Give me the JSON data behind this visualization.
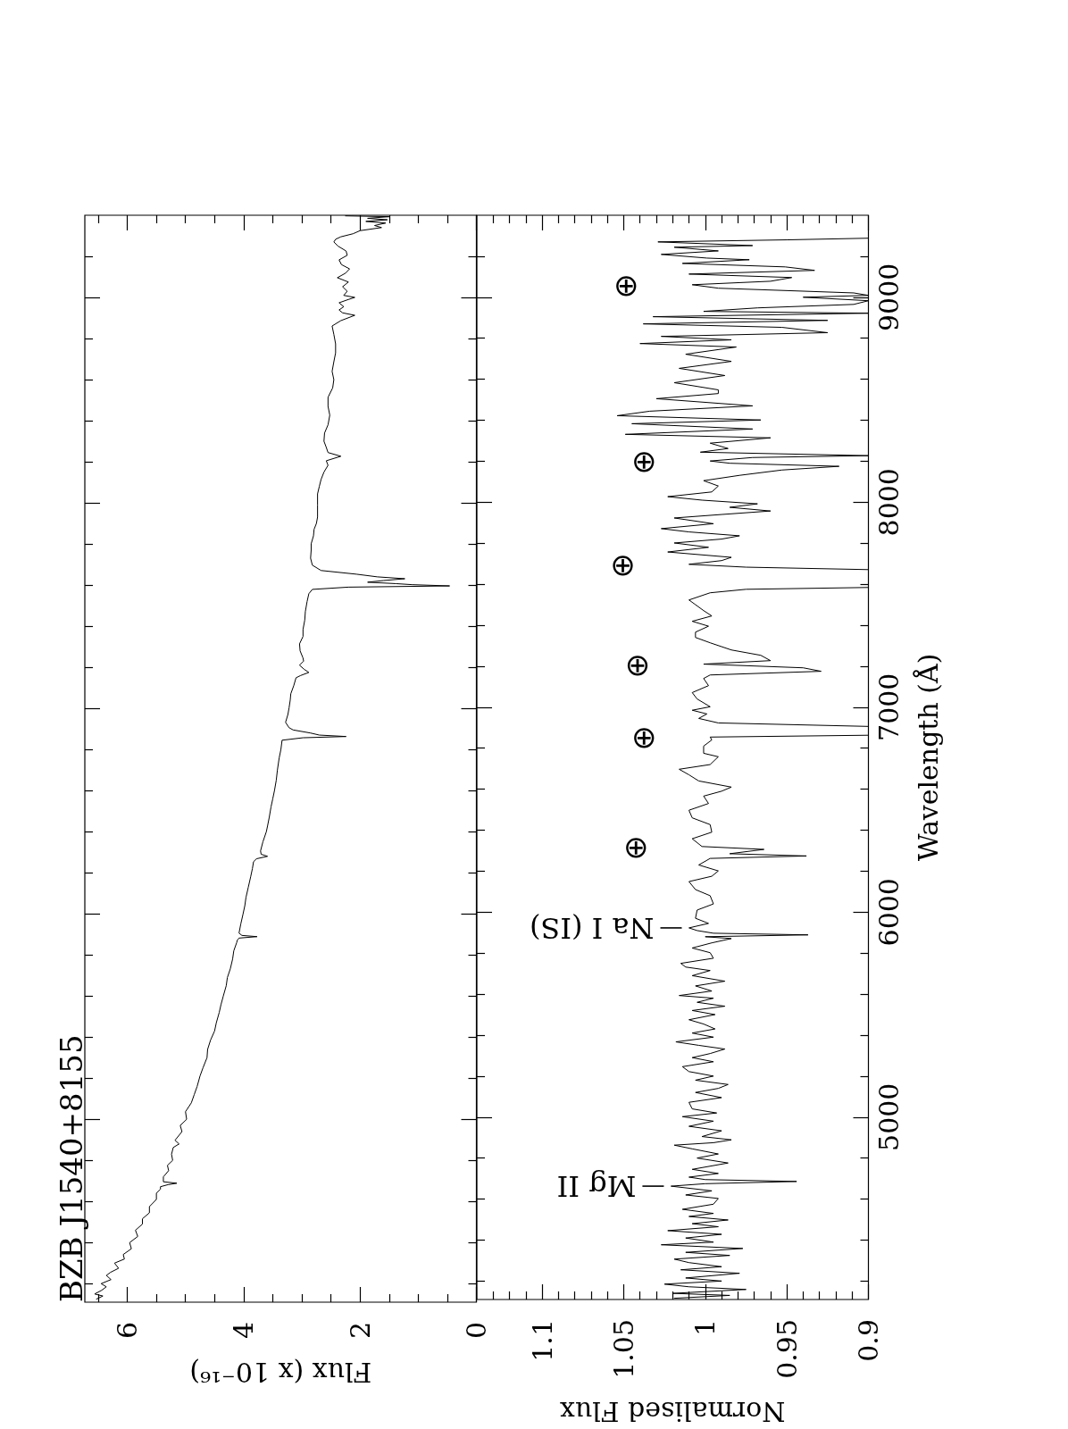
{
  "chart_data": [
    {
      "type": "line",
      "title": "BZB J1540+8155",
      "xlabel": "Flux (x 10⁻¹⁶)",
      "color": "#000000",
      "marker": "none",
      "tick_labels": "x",
      "xlim": [
        6.73,
        0
      ],
      "xticks": [
        {
          "value": 6.5,
          "label": null
        },
        6,
        {
          "value": 5.5,
          "label": null
        },
        {
          "value": 5,
          "label": null
        },
        {
          "value": 4.5,
          "label": null
        },
        4,
        {
          "value": 3.5,
          "label": null
        },
        {
          "value": 3,
          "label": null
        },
        {
          "value": 2.5,
          "label": null
        },
        2,
        {
          "value": 1.5,
          "label": null
        },
        {
          "value": 1,
          "label": null
        },
        {
          "value": 0.5,
          "label": null
        },
        0
      ],
      "ylim": [
        4110,
        9400
      ],
      "yticks": [
        {
          "value": 4200,
          "label": null
        },
        {
          "value": 4400,
          "label": null
        },
        {
          "value": 4600,
          "label": null
        },
        {
          "value": 4800,
          "label": null
        },
        5000,
        {
          "value": 5200,
          "label": null
        },
        {
          "value": 5400,
          "label": null
        },
        {
          "value": 5600,
          "label": null
        },
        {
          "value": 5800,
          "label": null
        },
        6000,
        {
          "value": 6200,
          "label": null
        },
        {
          "value": 6400,
          "label": null
        },
        {
          "value": 6600,
          "label": null
        },
        {
          "value": 6800,
          "label": null
        },
        7000,
        {
          "value": 7200,
          "label": null
        },
        {
          "value": 7400,
          "label": null
        },
        {
          "value": 7600,
          "label": null
        },
        {
          "value": 7800,
          "label": null
        },
        8000,
        {
          "value": 8200,
          "label": null
        },
        {
          "value": 8400,
          "label": null
        },
        {
          "value": 8600,
          "label": null
        },
        {
          "value": 8800,
          "label": null
        },
        9000,
        {
          "value": 9200,
          "label": null
        }
      ],
      "x": [
        6.53,
        6.42,
        6.56,
        6.44,
        6.36,
        6.45,
        6.28,
        6.36,
        6.29,
        6.15,
        6.22,
        6.05,
        6.07,
        5.93,
        5.96,
        5.82,
        5.86,
        5.74,
        5.74,
        5.62,
        5.62,
        5.5,
        5.5,
        5.43,
        5.43,
        5.3,
        5.15,
        5.38,
        5.38,
        5.29,
        5.31,
        5.22,
        5.24,
        5.21,
        5.11,
        5.18,
        5.06,
        5.09,
        4.98,
        5.0,
        4.9,
        4.85,
        4.8,
        4.75,
        4.7,
        4.63,
        4.62,
        4.57,
        4.5,
        4.47,
        4.42,
        4.39,
        4.35,
        4.3,
        4.28,
        4.23,
        4.19,
        4.17,
        4.12,
        4.11,
        4.08,
        3.77,
        4.03,
        4.08,
        4.05,
        4.01,
        3.98,
        3.96,
        3.92,
        3.88,
        3.85,
        3.83,
        3.78,
        3.59,
        3.7,
        3.71,
        3.67,
        3.61,
        3.59,
        3.56,
        3.53,
        3.5,
        3.47,
        3.44,
        3.42,
        3.39,
        3.36,
        3.34,
        2.98,
        2.24,
        2.7,
        2.85,
        3.15,
        3.22,
        3.28,
        3.24,
        3.22,
        3.2,
        3.19,
        3.14,
        3.1,
        3.02,
        2.88,
        2.96,
        3.04,
        2.97,
        2.98,
        3.03,
        3.04,
        2.98,
        2.98,
        2.95,
        2.94,
        2.91,
        2.88,
        2.82,
        2.2,
        0.46,
        1.1,
        1.38,
        1.87,
        1.6,
        1.23,
        1.7,
        2.06,
        2.67,
        2.82,
        2.85,
        2.84,
        2.84,
        2.8,
        2.79,
        2.75,
        2.73,
        2.73,
        2.73,
        2.7,
        2.67,
        2.62,
        2.55,
        2.58,
        2.33,
        2.55,
        2.58,
        2.62,
        2.61,
        2.55,
        2.52,
        2.55,
        2.55,
        2.47,
        2.45,
        2.48,
        2.45,
        2.42,
        2.42,
        2.45,
        2.48,
        2.33,
        2.09,
        2.3,
        2.36,
        2.28,
        2.36,
        2.2,
        2.09,
        2.28,
        2.22,
        2.3,
        2.2,
        2.39,
        2.25,
        2.18,
        2.32,
        2.36,
        2.22,
        2.24,
        2.38,
        2.45,
        2.42,
        2.33,
        2.12,
        2.0,
        1.63,
        1.75,
        1.56,
        1.9,
        1.53,
        1.87,
        1.5,
        2.25
      ],
      "values": [
        4125,
        4140,
        4150,
        4168,
        4185,
        4200,
        4220,
        4240,
        4255,
        4275,
        4300,
        4320,
        4342,
        4370,
        4400,
        4430,
        4460,
        4490,
        4516,
        4545,
        4575,
        4610,
        4640,
        4660,
        4672,
        4682,
        4689,
        4696,
        4720,
        4750,
        4776,
        4800,
        4830,
        4863,
        4880,
        4898,
        4940,
        4970,
        5000,
        5037,
        5080,
        5120,
        5160,
        5211,
        5250,
        5300,
        5340,
        5385,
        5430,
        5470,
        5520,
        5558,
        5600,
        5650,
        5690,
        5732,
        5780,
        5820,
        5860,
        5871,
        5882,
        5889,
        5895,
        5906,
        5950,
        6000,
        6040,
        6080,
        6130,
        6180,
        6220,
        6254,
        6268,
        6280,
        6290,
        6306,
        6350,
        6400,
        6427,
        6470,
        6520,
        6560,
        6601,
        6650,
        6700,
        6758,
        6800,
        6845,
        6857,
        6863,
        6870,
        6880,
        6895,
        6906,
        6932,
        6970,
        7002,
        7040,
        7071,
        7110,
        7149,
        7160,
        7175,
        7190,
        7210,
        7230,
        7245,
        7280,
        7314,
        7350,
        7384,
        7430,
        7471,
        7520,
        7558,
        7579,
        7590,
        7596,
        7602,
        7607,
        7614,
        7622,
        7631,
        7640,
        7653,
        7671,
        7697,
        7731,
        7770,
        7801,
        7840,
        7871,
        7900,
        7931,
        7990,
        8044,
        8080,
        8114,
        8150,
        8183,
        8205,
        8227,
        8245,
        8270,
        8300,
        8340,
        8380,
        8427,
        8470,
        8514,
        8560,
        8600,
        8640,
        8687,
        8730,
        8774,
        8820,
        8861,
        8887,
        8913,
        8925,
        8939,
        8955,
        8974,
        8990,
        9000,
        9010,
        9030,
        9052,
        9075,
        9096,
        9118,
        9139,
        9160,
        9183,
        9205,
        9226,
        9250,
        9270,
        9283,
        9295,
        9310,
        9325,
        9340,
        9350,
        9362,
        9370,
        9378,
        9385,
        9393,
        9397
      ]
    },
    {
      "type": "line",
      "xlabel": "Normalised Flux",
      "ylabel": "Wavelength (Å)",
      "color": "#000000",
      "marker": "none",
      "xlim": [
        1.14,
        0.9
      ],
      "xticks": [
        {
          "value": 1.13,
          "label": null
        },
        {
          "value": 1.12,
          "label": null
        },
        {
          "value": 1.11,
          "label": null
        },
        1.1,
        {
          "value": 1.09,
          "label": null
        },
        {
          "value": 1.08,
          "label": null
        },
        {
          "value": 1.07,
          "label": null
        },
        {
          "value": 1.06,
          "label": null
        },
        1.05,
        {
          "value": 1.04,
          "label": null
        },
        {
          "value": 1.03,
          "label": null
        },
        {
          "value": 1.02,
          "label": null
        },
        {
          "value": 1.01,
          "label": null
        },
        1,
        {
          "value": 0.99,
          "label": null
        },
        {
          "value": 0.98,
          "label": null
        },
        {
          "value": 0.97,
          "label": null
        },
        {
          "value": 0.96,
          "label": null
        },
        0.95,
        {
          "value": 0.94,
          "label": null
        },
        {
          "value": 0.93,
          "label": null
        },
        {
          "value": 0.92,
          "label": null
        },
        {
          "value": 0.91,
          "label": null
        },
        0.9
      ],
      "ylim": [
        4110,
        9400
      ],
      "yticks": [
        {
          "value": 4200,
          "label": null
        },
        {
          "value": 4400,
          "label": null
        },
        {
          "value": 4600,
          "label": null
        },
        {
          "value": 4800,
          "label": null
        },
        5000,
        {
          "value": 5200,
          "label": null
        },
        {
          "value": 5400,
          "label": null
        },
        {
          "value": 5600,
          "label": null
        },
        {
          "value": 5800,
          "label": null
        },
        6000,
        {
          "value": 6200,
          "label": null
        },
        {
          "value": 6400,
          "label": null
        },
        {
          "value": 6600,
          "label": null
        },
        {
          "value": 6800,
          "label": null
        },
        7000,
        {
          "value": 7200,
          "label": null
        },
        {
          "value": 7400,
          "label": null
        },
        {
          "value": 7600,
          "label": null
        },
        {
          "value": 7800,
          "label": null
        },
        8000,
        {
          "value": 8200,
          "label": null
        },
        {
          "value": 8400,
          "label": null
        },
        {
          "value": 8600,
          "label": null
        },
        {
          "value": 8800,
          "label": null
        },
        9000,
        {
          "value": 9200,
          "label": null
        }
      ],
      "annotations": [
        {
          "text": "Mg II",
          "x": 1.021,
          "y": 4663
        },
        {
          "text": "Na I (IS)",
          "x": 1.01,
          "y": 5923
        },
        {
          "text": "⊕",
          "x": 1.002,
          "y": 6320
        },
        {
          "text": "⊕",
          "x": 0.997,
          "y": 6854
        },
        {
          "text": "⊕",
          "x": 1.001,
          "y": 7210
        },
        {
          "text": "⊕",
          "x": 1.01,
          "y": 7697
        },
        {
          "text": "⊕",
          "x": 0.997,
          "y": 8201
        },
        {
          "text": "⊕",
          "x": 1.008,
          "y": 9061
        }
      ],
      "x": [
        1.019,
        0.985,
        1.02,
        0.975,
        1.01,
        1.025,
        0.99,
        1.012,
        0.979,
        1.015,
        0.99,
        1.01,
        1.019,
        0.985,
        1.012,
        0.977,
        1.027,
        0.995,
        1.012,
        0.99,
        1.023,
        0.992,
        1.008,
        0.986,
        1.01,
        0.995,
        1.014,
        0.995,
        0.992,
        1.012,
        0.996,
        1.021,
        1.0,
        0.944,
        1.0,
        1.01,
        0.992,
        1.008,
        0.986,
        1.005,
        0.992,
        1.008,
        1.019,
        0.995,
        0.984,
        1.002,
        0.99,
        1.01,
        0.995,
        1.014,
        0.993,
        1.008,
        1.01,
        0.99,
        1.006,
        0.992,
        0.986,
        1.006,
        0.995,
        1.01,
        1.014,
        0.995,
        1.008,
        0.997,
        0.988,
        1.004,
        1.018,
        0.995,
        1.008,
        0.994,
        1.001,
        1.01,
        0.994,
        1.008,
        0.988,
        1.005,
        0.995,
        1.016,
        0.996,
        1.006,
        0.988,
        1.008,
        0.997,
        1.012,
        1.015,
        0.995,
        0.997,
        1.008,
        0.996,
        0.984,
        1.0,
        0.937,
        0.995,
        1.005,
        1.01,
        0.998,
        1.006,
        1.005,
        0.995,
        0.997,
        1.006,
        1.01,
        0.996,
        0.992,
        1.004,
        0.997,
        0.938,
        0.985,
        0.964,
        1.002,
        1.008,
        0.996,
        0.997,
        1.008,
        1.01,
        0.998,
        1.001,
        0.99,
        0.984,
        1.004,
        1.01,
        1.016,
        0.997,
        0.992,
        1.001,
        1.001,
        0.996,
        0.997,
        0.9,
        0.9,
        0.992,
        1.004,
        0.999,
        1.008,
        0.997,
        1.005,
        1.008,
        0.998,
        1.001,
        0.997,
        0.929,
        0.94,
        1.001,
        0.96,
        0.966,
        0.984,
        0.997,
        1.006,
        1.006,
        0.998,
        1.008,
        0.996,
        1.001,
        1.006,
        1.01,
        0.997,
        0.975,
        0.9,
        0.9,
        0.975,
        1.01,
        0.99,
        0.984,
        1.023,
        0.998,
        1.019,
        0.99,
        0.979,
        1.01,
        1.027,
        0.995,
        1.019,
        0.99,
        0.96,
        0.985,
        0.968,
        1.002,
        1.023,
        0.996,
        0.992,
        1.001,
        0.979,
        0.953,
        0.918,
        0.985,
        0.997,
        0.971,
        0.9,
        1.003,
        0.986,
        0.997,
        0.96,
        1.049,
        0.971,
        1.045,
        0.966,
        1.054,
        1.034,
        0.971,
        1.03,
        0.992,
        0.992,
        1.019,
        0.988,
        1.016,
        0.984,
        1.012,
        0.981,
        1.04,
        0.984,
        1.027,
        0.925,
        0.953,
        1.038,
        0.925,
        1.032,
        0.9,
        1.001,
        0.968,
        0.909,
        0.9,
        0.94,
        0.9,
        0.909,
        0.992,
        1.008,
        0.96,
        0.947,
        1.01,
        0.933,
        0.951,
        1.014,
        0.973,
        0.999,
        1.027,
        0.992,
        1.019,
        0.971,
        1.029,
        0.95,
        0.9
      ],
      "values": [
        4116,
        4130,
        4140,
        4159,
        4172,
        4185,
        4200,
        4215,
        4238,
        4255,
        4270,
        4290,
        4307,
        4325,
        4340,
        4359,
        4377,
        4390,
        4410,
        4428,
        4446,
        4465,
        4480,
        4498,
        4515,
        4530,
        4550,
        4575,
        4603,
        4620,
        4640,
        4663,
        4675,
        4686,
        4695,
        4707,
        4725,
        4745,
        4776,
        4800,
        4820,
        4845,
        4863,
        4875,
        4889,
        4905,
        4933,
        4955,
        4980,
        5002,
        5020,
        5040,
        5072,
        5095,
        5120,
        5140,
        5159,
        5180,
        5200,
        5222,
        5246,
        5270,
        5290,
        5310,
        5332,
        5350,
        5367,
        5390,
        5410,
        5430,
        5454,
        5475,
        5500,
        5520,
        5541,
        5560,
        5580,
        5593,
        5615,
        5640,
        5663,
        5690,
        5715,
        5732,
        5750,
        5775,
        5802,
        5825,
        5850,
        5871,
        5880,
        5889,
        5897,
        5910,
        5923,
        5945,
        5970,
        6010,
        6040,
        6080,
        6110,
        6149,
        6175,
        6201,
        6230,
        6262,
        6274,
        6285,
        6306,
        6320,
        6358,
        6390,
        6427,
        6460,
        6497,
        6530,
        6566,
        6590,
        6610,
        6640,
        6670,
        6697,
        6720,
        6758,
        6775,
        6810,
        6840,
        6854,
        6863,
        6906,
        6923,
        6945,
        6967,
        6985,
        7002,
        7040,
        7071,
        7105,
        7140,
        7157,
        7175,
        7192,
        7210,
        7227,
        7253,
        7279,
        7314,
        7340,
        7366,
        7395,
        7419,
        7445,
        7471,
        7500,
        7523,
        7558,
        7575,
        7584,
        7671,
        7683,
        7697,
        7715,
        7731,
        7757,
        7780,
        7801,
        7820,
        7836,
        7855,
        7871,
        7895,
        7923,
        7940,
        7957,
        7975,
        7992,
        8010,
        8027,
        8050,
        8079,
        8105,
        8131,
        8157,
        8175,
        8190,
        8201,
        8218,
        8227,
        8244,
        8262,
        8288,
        8314,
        8331,
        8357,
        8383,
        8401,
        8422,
        8444,
        8470,
        8505,
        8530,
        8548,
        8583,
        8618,
        8653,
        8687,
        8722,
        8757,
        8774,
        8792,
        8809,
        8827,
        8853,
        8870,
        8887,
        8905,
        8922,
        8931,
        8948,
        8965,
        8983,
        9000,
        9009,
        9021,
        9044,
        9061,
        9078,
        9096,
        9113,
        9131,
        9148,
        9165,
        9183,
        9191,
        9209,
        9226,
        9244,
        9252,
        9270,
        9280,
        9288
      ]
    }
  ]
}
